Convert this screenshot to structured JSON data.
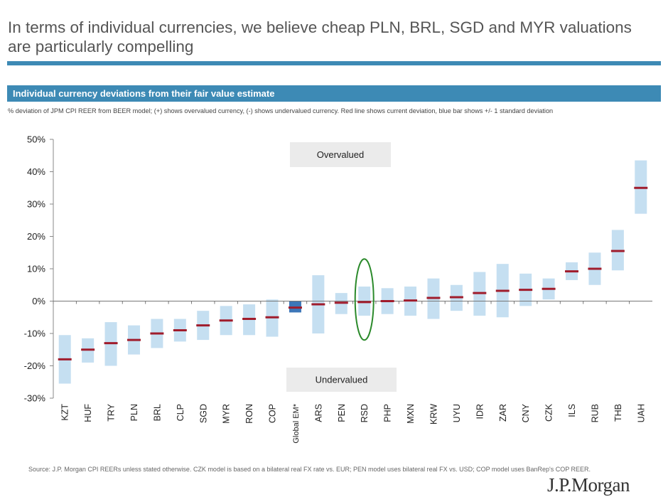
{
  "header": {
    "title": "In terms of individual currencies, we believe cheap PLN, BRL, SGD and MYR valuations are particularly compelling"
  },
  "banner": {
    "title": "Individual currency deviations from their fair value estimate"
  },
  "subtitle": "% deviation of JPM CPI REER from BEER model; (+) shows overvalued currency, (-) shows undervalued currency. Red line shows current deviation, blue bar shows +/- 1 standard deviation",
  "footer": {
    "source": "Source: J.P. Morgan CPI REERs unless stated otherwise. CZK model is based on a bilateral real FX rate vs. EUR; PEN model uses bilateral real FX vs. USD; COP model uses BanRep's COP REER.",
    "logo": "J.P.Morgan"
  },
  "colors": {
    "accent": "#3d8ab5",
    "range_bar": "#c5dff1",
    "em_bar": "#3d77b8",
    "current": "#a01c2c",
    "highlight": "#2b8a2b",
    "label_box": "#ebebeb"
  },
  "chart_data": {
    "type": "bar",
    "ylim": [
      -30,
      50
    ],
    "yticks": [
      50,
      40,
      30,
      20,
      10,
      0,
      -10,
      -20,
      -30
    ],
    "ytick_labels": [
      "50%",
      "40%",
      "30%",
      "20%",
      "10%",
      "0%",
      "-10%",
      "-20%",
      "-30%"
    ],
    "categories": [
      "KZT",
      "HUF",
      "TRY",
      "PLN",
      "BRL",
      "CLP",
      "SGD",
      "MYR",
      "RON",
      "COP",
      "Global EM*",
      "ARS",
      "PEN",
      "RSD",
      "PHP",
      "MXN",
      "KRW",
      "UYU",
      "IDR",
      "ZAR",
      "CNY",
      "CZK",
      "ILS",
      "RUB",
      "THB",
      "UAH"
    ],
    "series": [
      {
        "name": "+/- 1 standard deviation (low)",
        "values": [
          -25.5,
          -19.0,
          -20.0,
          -16.5,
          -14.5,
          -12.5,
          -12.0,
          -10.5,
          -10.5,
          -11.0,
          -3.5,
          -10.0,
          -4.0,
          -4.5,
          -4.0,
          -4.5,
          -5.5,
          -3.0,
          -4.5,
          -5.0,
          -1.5,
          0.5,
          6.5,
          5.0,
          9.5,
          27.0
        ]
      },
      {
        "name": "+/- 1 standard deviation (high)",
        "values": [
          -10.5,
          -11.5,
          -6.5,
          -7.5,
          -5.5,
          -5.5,
          -3.0,
          -1.5,
          -1.0,
          0.5,
          0.0,
          8.0,
          2.5,
          4.5,
          4.0,
          4.5,
          7.0,
          5.0,
          9.0,
          11.5,
          8.5,
          7.0,
          12.0,
          15.0,
          22.0,
          43.5
        ]
      },
      {
        "name": "Current deviation",
        "values": [
          -18.0,
          -15.0,
          -13.0,
          -12.0,
          -10.0,
          -9.0,
          -7.5,
          -6.0,
          -5.5,
          -5.0,
          -2.0,
          -1.0,
          -0.5,
          -0.3,
          0.0,
          0.2,
          1.0,
          1.2,
          2.5,
          3.2,
          3.5,
          3.8,
          9.2,
          10.0,
          15.5,
          35.0
        ]
      }
    ],
    "highlighted": [
      "RSD"
    ],
    "annotations": [
      "Overvalued",
      "Undervalued"
    ],
    "title": "Individual currency deviations from their fair value estimate",
    "xlabel": "",
    "ylabel": "",
    "legend": "none",
    "grid": false
  }
}
